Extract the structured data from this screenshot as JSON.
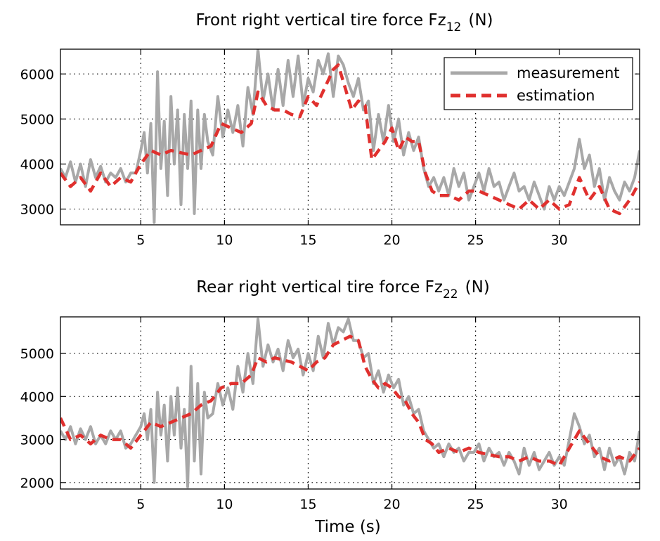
{
  "colors": {
    "measurement": "#a8a8a8",
    "estimation": "#e0302e"
  },
  "legend": {
    "measurement": "measurement",
    "estimation": "estimation",
    "position": "top-right"
  },
  "chart_data": [
    {
      "type": "line",
      "title_main": "Front right vertical tire force Fz",
      "title_sub": "12",
      "title_unit": "(N)",
      "xlabel": "",
      "xlim": [
        0.2,
        34.8
      ],
      "ylim": [
        2650,
        6550
      ],
      "xticks": [
        5,
        10,
        15,
        20,
        25,
        30
      ],
      "yticks": [
        3000,
        4000,
        5000,
        6000
      ],
      "grid": true,
      "series": [
        {
          "name": "measurement",
          "x": [
            0.2,
            0.5,
            0.8,
            1.1,
            1.4,
            1.7,
            2.0,
            2.3,
            2.6,
            2.9,
            3.2,
            3.5,
            3.8,
            4.1,
            4.4,
            4.7,
            5.0,
            5.2,
            5.4,
            5.6,
            5.8,
            6.0,
            6.2,
            6.4,
            6.6,
            6.8,
            7.0,
            7.2,
            7.4,
            7.6,
            7.8,
            8.0,
            8.2,
            8.4,
            8.6,
            8.8,
            9.0,
            9.3,
            9.6,
            9.9,
            10.2,
            10.5,
            10.8,
            11.1,
            11.4,
            11.7,
            12.0,
            12.3,
            12.6,
            12.9,
            13.2,
            13.5,
            13.8,
            14.1,
            14.4,
            14.7,
            15.0,
            15.3,
            15.6,
            15.9,
            16.2,
            16.5,
            16.8,
            17.1,
            17.4,
            17.7,
            18.0,
            18.3,
            18.6,
            18.9,
            19.2,
            19.5,
            19.8,
            20.1,
            20.4,
            20.7,
            21.0,
            21.3,
            21.6,
            21.9,
            22.2,
            22.5,
            22.8,
            23.1,
            23.4,
            23.7,
            24.0,
            24.3,
            24.6,
            24.9,
            25.2,
            25.5,
            25.8,
            26.1,
            26.4,
            26.7,
            27.0,
            27.3,
            27.6,
            27.9,
            28.2,
            28.5,
            28.8,
            29.1,
            29.4,
            29.7,
            30.0,
            30.3,
            30.6,
            30.9,
            31.2,
            31.5,
            31.8,
            32.1,
            32.4,
            32.7,
            33.0,
            33.3,
            33.6,
            33.9,
            34.2,
            34.5,
            34.8
          ],
          "values": [
            3900,
            3700,
            4050,
            3600,
            4000,
            3500,
            4100,
            3700,
            3950,
            3600,
            3800,
            3700,
            3900,
            3600,
            3800,
            3800,
            4300,
            4700,
            3800,
            4900,
            2700,
            6050,
            3900,
            4950,
            3300,
            5500,
            4000,
            5200,
            3100,
            5100,
            3900,
            5400,
            2900,
            5200,
            3900,
            5100,
            4500,
            4200,
            5500,
            4600,
            5200,
            4700,
            5300,
            4400,
            5700,
            5100,
            6550,
            5400,
            6000,
            5200,
            6100,
            5300,
            6300,
            5500,
            6400,
            5300,
            5900,
            5600,
            6300,
            6000,
            6450,
            5500,
            6400,
            6200,
            5800,
            5500,
            5900,
            5200,
            5400,
            4300,
            5100,
            4500,
            5300,
            4500,
            5000,
            4200,
            4700,
            4300,
            4600,
            3900,
            3500,
            3700,
            3400,
            3700,
            3300,
            3900,
            3500,
            3800,
            3200,
            3500,
            3800,
            3400,
            3900,
            3500,
            3600,
            3200,
            3500,
            3800,
            3400,
            3500,
            3200,
            3600,
            3300,
            3000,
            3500,
            3200,
            3500,
            3300,
            3600,
            3900,
            4550,
            3900,
            4200,
            3500,
            3900,
            3200,
            3700,
            3400,
            3200,
            3600,
            3400,
            3700,
            4300
          ]
        },
        {
          "name": "estimation",
          "x": [
            0.2,
            0.8,
            1.4,
            2.0,
            2.6,
            3.2,
            3.8,
            4.4,
            5.0,
            5.6,
            6.2,
            6.8,
            7.4,
            8.0,
            8.6,
            9.2,
            9.8,
            10.4,
            11.0,
            11.6,
            12.0,
            12.5,
            13.0,
            13.5,
            14.0,
            14.5,
            15.0,
            15.5,
            16.0,
            16.5,
            16.8,
            17.2,
            17.6,
            18.0,
            18.4,
            18.8,
            19.2,
            19.6,
            20.0,
            20.4,
            20.8,
            21.2,
            21.6,
            22.0,
            22.4,
            22.8,
            23.4,
            24.0,
            24.6,
            25.2,
            25.8,
            26.4,
            27.0,
            27.6,
            28.2,
            28.8,
            29.4,
            30.0,
            30.6,
            31.2,
            31.8,
            32.4,
            33.0,
            33.6,
            34.2,
            34.8
          ],
          "values": [
            3800,
            3500,
            3700,
            3400,
            3800,
            3500,
            3700,
            3600,
            4000,
            4300,
            4200,
            4300,
            4250,
            4200,
            4300,
            4400,
            4900,
            4800,
            4700,
            4900,
            5600,
            5300,
            5200,
            5200,
            5100,
            5050,
            5500,
            5300,
            5700,
            6100,
            6200,
            5700,
            5200,
            5400,
            5300,
            4100,
            4300,
            4500,
            4800,
            4300,
            4600,
            4500,
            4500,
            3800,
            3400,
            3300,
            3300,
            3200,
            3400,
            3400,
            3300,
            3200,
            3100,
            3000,
            3200,
            3000,
            3200,
            3000,
            3100,
            3700,
            3200,
            3500,
            3000,
            2900,
            3200,
            3600
          ]
        }
      ]
    },
    {
      "type": "line",
      "title_main": "Rear right vertical tire force Fz",
      "title_sub": "22",
      "title_unit": "(N)",
      "xlabel": "Time (s)",
      "xlim": [
        0.2,
        34.8
      ],
      "ylim": [
        1850,
        5850
      ],
      "xticks": [
        5,
        10,
        15,
        20,
        25,
        30
      ],
      "yticks": [
        2000,
        3000,
        4000,
        5000
      ],
      "grid": true,
      "series": [
        {
          "name": "measurement",
          "x": [
            0.2,
            0.5,
            0.8,
            1.1,
            1.4,
            1.7,
            2.0,
            2.3,
            2.6,
            2.9,
            3.2,
            3.5,
            3.8,
            4.1,
            4.4,
            4.7,
            5.0,
            5.2,
            5.4,
            5.6,
            5.8,
            6.0,
            6.2,
            6.4,
            6.6,
            6.8,
            7.0,
            7.2,
            7.4,
            7.6,
            7.8,
            8.0,
            8.2,
            8.4,
            8.6,
            8.8,
            9.0,
            9.3,
            9.6,
            9.9,
            10.2,
            10.5,
            10.8,
            11.1,
            11.4,
            11.7,
            12.0,
            12.3,
            12.6,
            12.9,
            13.2,
            13.5,
            13.8,
            14.1,
            14.4,
            14.7,
            15.0,
            15.3,
            15.6,
            15.9,
            16.2,
            16.5,
            16.8,
            17.1,
            17.4,
            17.7,
            18.0,
            18.3,
            18.6,
            18.9,
            19.2,
            19.5,
            19.8,
            20.1,
            20.4,
            20.7,
            21.0,
            21.3,
            21.6,
            21.9,
            22.2,
            22.5,
            22.8,
            23.1,
            23.4,
            23.7,
            24.0,
            24.3,
            24.6,
            24.9,
            25.2,
            25.5,
            25.8,
            26.1,
            26.4,
            26.7,
            27.0,
            27.3,
            27.6,
            27.9,
            28.2,
            28.5,
            28.8,
            29.1,
            29.4,
            29.7,
            30.0,
            30.3,
            30.6,
            30.9,
            31.2,
            31.5,
            31.8,
            32.1,
            32.4,
            32.7,
            33.0,
            33.3,
            33.6,
            33.9,
            34.2,
            34.5,
            34.8
          ],
          "values": [
            3200,
            3000,
            3300,
            2900,
            3250,
            3000,
            3300,
            2900,
            3100,
            2900,
            3200,
            3000,
            3200,
            2800,
            2900,
            3100,
            3300,
            3600,
            3000,
            3700,
            2000,
            4100,
            3100,
            3800,
            2500,
            4000,
            3100,
            4200,
            2800,
            3700,
            1900,
            4700,
            2500,
            4300,
            2200,
            4100,
            3500,
            3600,
            4300,
            3800,
            4200,
            3700,
            4700,
            4100,
            5000,
            4300,
            5800,
            4700,
            5200,
            4800,
            5100,
            4600,
            5300,
            4900,
            5100,
            4500,
            5000,
            4600,
            5400,
            4900,
            5700,
            5200,
            5600,
            5500,
            5800,
            5300,
            5300,
            4900,
            5000,
            4300,
            4600,
            4100,
            4500,
            4200,
            4400,
            3800,
            4000,
            3600,
            3700,
            3200,
            3000,
            2800,
            2900,
            2600,
            2900,
            2700,
            2800,
            2500,
            2700,
            2700,
            2900,
            2500,
            2800,
            2600,
            2700,
            2400,
            2700,
            2500,
            2200,
            2800,
            2400,
            2700,
            2300,
            2500,
            2700,
            2400,
            2600,
            2400,
            3000,
            3600,
            3300,
            2900,
            3100,
            2600,
            2800,
            2300,
            2800,
            2400,
            2600,
            2200,
            2700,
            2500,
            3200
          ]
        },
        {
          "name": "estimation",
          "x": [
            0.2,
            0.8,
            1.4,
            2.0,
            2.6,
            3.2,
            3.8,
            4.4,
            5.0,
            5.6,
            6.2,
            6.8,
            7.4,
            8.0,
            8.6,
            9.2,
            9.8,
            10.4,
            11.0,
            11.6,
            12.0,
            12.5,
            13.0,
            13.5,
            14.0,
            14.5,
            15.0,
            15.5,
            16.0,
            16.5,
            17.0,
            17.5,
            18.0,
            18.4,
            18.8,
            19.2,
            19.6,
            20.0,
            20.4,
            20.8,
            21.2,
            21.6,
            22.0,
            22.4,
            22.8,
            23.4,
            24.0,
            24.6,
            25.2,
            25.8,
            26.4,
            27.0,
            27.6,
            28.2,
            28.8,
            29.4,
            30.0,
            30.6,
            31.2,
            31.8,
            32.4,
            33.0,
            33.6,
            34.2,
            34.8
          ],
          "values": [
            3500,
            3000,
            3100,
            2900,
            3100,
            3000,
            3000,
            2800,
            3100,
            3400,
            3300,
            3400,
            3500,
            3600,
            3800,
            3900,
            4200,
            4300,
            4300,
            4500,
            4900,
            4800,
            4900,
            4850,
            4800,
            4700,
            4600,
            4800,
            4900,
            5200,
            5300,
            5400,
            5300,
            4700,
            4400,
            4200,
            4300,
            4200,
            4000,
            3900,
            3600,
            3400,
            3000,
            2900,
            2700,
            2800,
            2700,
            2800,
            2700,
            2650,
            2600,
            2600,
            2500,
            2600,
            2500,
            2500,
            2400,
            2800,
            3200,
            2900,
            2600,
            2500,
            2600,
            2500,
            2800
          ]
        }
      ]
    }
  ]
}
